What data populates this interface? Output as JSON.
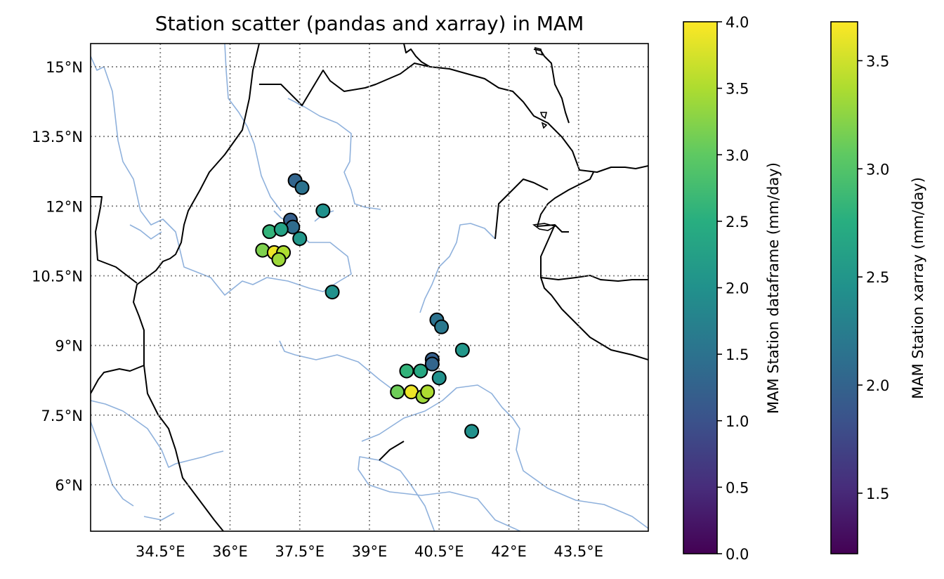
{
  "chart_data": {
    "type": "scatter",
    "title": "Station scatter (pandas and xarray) in MAM",
    "xlabel": "",
    "ylabel": "",
    "xlim": [
      33.0,
      45.0
    ],
    "ylim": [
      5.0,
      15.5
    ],
    "xticks": [
      34.5,
      36.0,
      37.5,
      39.0,
      40.5,
      42.0,
      43.5
    ],
    "xtick_labels": [
      "34.5°E",
      "36°E",
      "37.5°E",
      "39°E",
      "40.5°E",
      "42°E",
      "43.5°E"
    ],
    "yticks": [
      6.0,
      7.5,
      9.0,
      10.5,
      12.0,
      13.5,
      15.0
    ],
    "ytick_labels": [
      "6°N",
      "7.5°N",
      "9°N",
      "10.5°N",
      "12°N",
      "13.5°N",
      "15°N"
    ],
    "grid": true,
    "series": [
      {
        "points": [
          {
            "lon": 37.4,
            "lat": 12.55,
            "value": 1.3
          },
          {
            "lon": 37.55,
            "lat": 12.4,
            "value": 1.5
          },
          {
            "lon": 37.3,
            "lat": 11.7,
            "value": 1.2
          },
          {
            "lon": 37.35,
            "lat": 11.55,
            "value": 1.4
          },
          {
            "lon": 38.0,
            "lat": 11.9,
            "value": 2.0
          },
          {
            "lon": 36.85,
            "lat": 11.45,
            "value": 2.6
          },
          {
            "lon": 37.1,
            "lat": 11.5,
            "value": 2.3
          },
          {
            "lon": 37.5,
            "lat": 11.3,
            "value": 2.1
          },
          {
            "lon": 36.7,
            "lat": 11.05,
            "value": 3.2
          },
          {
            "lon": 36.95,
            "lat": 11.0,
            "value": 3.9
          },
          {
            "lon": 37.15,
            "lat": 11.0,
            "value": 3.5
          },
          {
            "lon": 37.05,
            "lat": 10.85,
            "value": 3.4
          },
          {
            "lon": 38.2,
            "lat": 10.15,
            "value": 2.0
          },
          {
            "lon": 40.45,
            "lat": 9.55,
            "value": 1.5
          },
          {
            "lon": 40.55,
            "lat": 9.4,
            "value": 1.6
          },
          {
            "lon": 41.0,
            "lat": 8.9,
            "value": 2.1
          },
          {
            "lon": 40.35,
            "lat": 8.7,
            "value": 1.2
          },
          {
            "lon": 40.35,
            "lat": 8.6,
            "value": 1.3
          },
          {
            "lon": 39.8,
            "lat": 8.45,
            "value": 2.6
          },
          {
            "lon": 40.1,
            "lat": 8.45,
            "value": 2.4
          },
          {
            "lon": 40.5,
            "lat": 8.3,
            "value": 2.0
          },
          {
            "lon": 39.6,
            "lat": 8.0,
            "value": 3.1
          },
          {
            "lon": 39.9,
            "lat": 8.0,
            "value": 3.9
          },
          {
            "lon": 40.15,
            "lat": 7.9,
            "value": 3.4
          },
          {
            "lon": 40.25,
            "lat": 8.0,
            "value": 3.5
          },
          {
            "lon": 41.2,
            "lat": 7.15,
            "value": 2.0
          }
        ]
      }
    ],
    "colorbars": [
      {
        "label": "MAM Station dataframe (mm/day)",
        "colormap": "viridis",
        "vmin": 0.0,
        "vmax": 4.0,
        "ticks": [
          "0.0",
          "0.5",
          "1.0",
          "1.5",
          "2.0",
          "2.5",
          "3.0",
          "3.5",
          "4.0"
        ]
      },
      {
        "label": "MAM Station xarray (mm/day)",
        "colormap": "viridis",
        "vmin": 1.22,
        "vmax": 3.68,
        "ticks": [
          "1.5",
          "2.0",
          "2.5",
          "3.0",
          "3.5"
        ]
      }
    ],
    "colors": {
      "coastline": "#000000",
      "rivers": "#8fb1dc",
      "gridlines": "#808080",
      "marker_edge": "#000000"
    }
  }
}
